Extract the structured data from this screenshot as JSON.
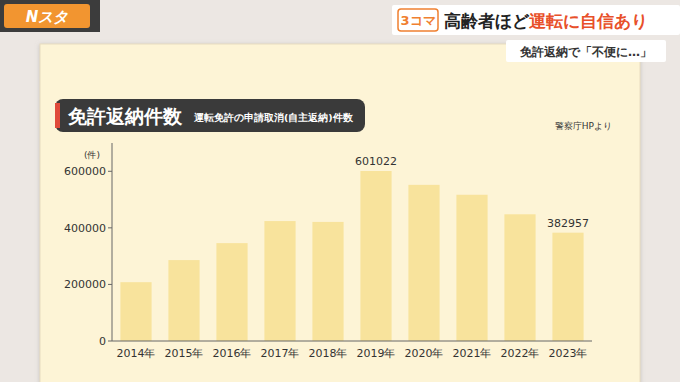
{
  "header": {
    "logo": "Nスタ",
    "segment": "3コマ",
    "headline": [
      "高齢者ほど",
      "運転に自信あり"
    ],
    "subhead": "免許返納で「不便に…」"
  },
  "chart_data": {
    "type": "bar",
    "title": "免許返納件数",
    "subtitle": "運転免許の申請取消(自主返納)件数",
    "annotations": [
      "警察庁HPより"
    ],
    "y_label": "(件)",
    "categories": [
      "2014年",
      "2015年",
      "2016年",
      "2017年",
      "2018年",
      "2019年",
      "2020年",
      "2021年",
      "2022年",
      "2023年"
    ],
    "values": [
      208000,
      286000,
      346000,
      424000,
      421000,
      601022,
      552000,
      517000,
      448000,
      382957
    ],
    "value_labels": [
      null,
      null,
      null,
      null,
      null,
      "601022",
      null,
      null,
      null,
      "382957"
    ],
    "color": "#f8e39c",
    "ylim": [
      0,
      700000
    ],
    "yticks": [
      0,
      200000,
      400000,
      600000
    ],
    "grid": false
  }
}
